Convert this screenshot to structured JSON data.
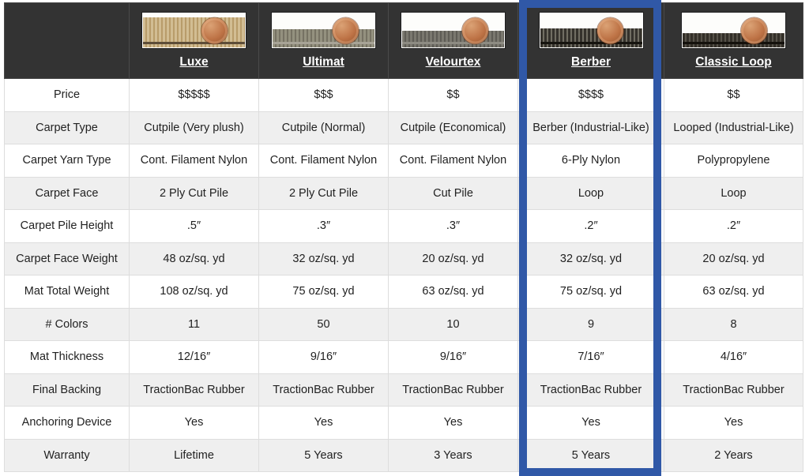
{
  "colors": {
    "highlight_border": "#3058a7",
    "header_bg": "#333333",
    "row_alt_bg": "#efefef",
    "cell_border": "#dddddd",
    "penny": "#bd7245"
  },
  "table": {
    "highlighted_product": "Berber",
    "corner_label": "",
    "products": [
      {
        "name": "Luxe",
        "swatch": {
          "icon": "luxe-carpet-photo",
          "pile_colors": [
            "#cdb astray",
            "#c6ab7d"
          ],
          "c1": "#cdb astray"
        }
      },
      {
        "name": "Ultimat"
      },
      {
        "name": "Velourtex"
      },
      {
        "name": "Berber"
      },
      {
        "name": "Classic Loop"
      }
    ],
    "swatches": [
      {
        "icon": "luxe-carpet-photo",
        "c1": "#d2bd93",
        "c2": "#b89c6a",
        "pile_h": 38,
        "backing": "#5d4d38",
        "penny_right": 22
      },
      {
        "icon": "ultimat-carpet-photo",
        "c1": "#94917f",
        "c2": "#767263",
        "pile_h": 23,
        "backing": "#a7a396",
        "penny_right": 20
      },
      {
        "icon": "velourtex-carpet-photo",
        "c1": "#7a786f",
        "c2": "#5e5c55",
        "pile_h": 21,
        "backing": "#8d8b82",
        "penny_right": 20
      },
      {
        "icon": "berber-carpet-photo",
        "c1": "#35322c",
        "c2": "#716e63",
        "pile_h": 24,
        "backing": "#16140f",
        "penny_right": 24
      },
      {
        "icon": "classic-loop-carpet-photo",
        "c1": "#332f28",
        "c2": "#57534a",
        "pile_h": 18,
        "backing": "#14110c",
        "penny_right": 22
      }
    ],
    "rows": [
      {
        "label": "Price",
        "values": [
          "$$$$$",
          "$$$",
          "$$",
          "$$$$",
          "$$"
        ]
      },
      {
        "label": "Carpet Type",
        "values": [
          "Cutpile (Very plush)",
          "Cutpile (Normal)",
          "Cutpile (Economical)",
          "Berber (Industrial-Like)",
          "Looped (Industrial-Like)"
        ]
      },
      {
        "label": "Carpet Yarn Type",
        "values": [
          "Cont. Filament Nylon",
          "Cont. Filament Nylon",
          "Cont. Filament Nylon",
          "6-Ply Nylon",
          "Polypropylene"
        ]
      },
      {
        "label": "Carpet Face",
        "values": [
          "2 Ply Cut Pile",
          "2 Ply Cut Pile",
          "Cut Pile",
          "Loop",
          "Loop"
        ]
      },
      {
        "label": "Carpet Pile Height",
        "values": [
          ".5″",
          ".3″",
          ".3″",
          ".2″",
          ".2″"
        ]
      },
      {
        "label": "Carpet Face Weight",
        "values": [
          "48 oz/sq. yd",
          "32 oz/sq. yd",
          "20 oz/sq. yd",
          "32 oz/sq. yd",
          "20 oz/sq. yd"
        ]
      },
      {
        "label": "Mat Total Weight",
        "values": [
          "108 oz/sq. yd",
          "75 oz/sq. yd",
          "63 oz/sq. yd",
          "75 oz/sq. yd",
          "63 oz/sq. yd"
        ]
      },
      {
        "label": "# Colors",
        "values": [
          "11",
          "50",
          "10",
          "9",
          "8"
        ]
      },
      {
        "label": "Mat Thickness",
        "values": [
          "12/16″",
          "9/16″",
          "9/16″",
          "7/16″",
          "4/16″"
        ]
      },
      {
        "label": "Final Backing",
        "values": [
          "TractionBac Rubber",
          "TractionBac Rubber",
          "TractionBac Rubber",
          "TractionBac Rubber",
          "TractionBac Rubber"
        ]
      },
      {
        "label": "Anchoring Device",
        "values": [
          "Yes",
          "Yes",
          "Yes",
          "Yes",
          "Yes"
        ]
      },
      {
        "label": "Warranty",
        "values": [
          "Lifetime",
          "5 Years",
          "3 Years",
          "5 Years",
          "2 Years"
        ]
      }
    ]
  }
}
